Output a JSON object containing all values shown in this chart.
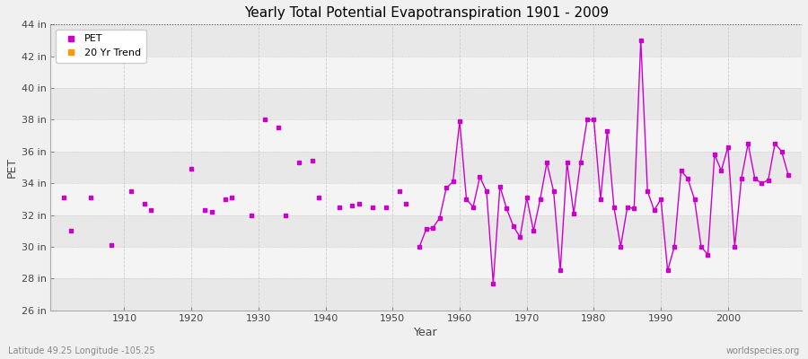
{
  "title": "Yearly Total Potential Evapotranspiration 1901 - 2009",
  "xlabel": "Year",
  "ylabel": "PET",
  "subtitle_left": "Latitude 49.25 Longitude -105.25",
  "subtitle_right": "worldspecies.org",
  "ylim": [
    26,
    44
  ],
  "yticks": [
    26,
    28,
    30,
    32,
    34,
    36,
    38,
    40,
    42,
    44
  ],
  "ytick_labels": [
    "26 in",
    "28 in",
    "30 in",
    "32 in",
    "34 in",
    "36 in",
    "38 in",
    "40 in",
    "42 in",
    "44 in"
  ],
  "xlim": [
    1899,
    2011
  ],
  "xticks": [
    1910,
    1920,
    1930,
    1940,
    1950,
    1960,
    1970,
    1980,
    1990,
    2000
  ],
  "bg_color": "#f0f0f0",
  "plot_bg_color": "#f0f0f0",
  "band_colors": [
    "#e8e8e8",
    "#f4f4f4"
  ],
  "line_color": "#cc00cc",
  "trend_color": "#ff9900",
  "line_connected_start": 1954,
  "pet_data": {
    "1901": 33.1,
    "1902": 31.0,
    "1905": 33.1,
    "1908": 30.1,
    "1911": 33.5,
    "1913": 32.7,
    "1914": 32.3,
    "1920": 34.9,
    "1922": 32.3,
    "1923": 32.2,
    "1925": 33.0,
    "1926": 33.1,
    "1929": 32.0,
    "1931": 38.0,
    "1933": 37.5,
    "1934": 32.0,
    "1936": 35.3,
    "1938": 35.4,
    "1939": 33.1,
    "1942": 32.5,
    "1944": 32.6,
    "1945": 32.7,
    "1947": 32.5,
    "1949": 32.5,
    "1951": 33.5,
    "1952": 32.7,
    "1954": 30.0,
    "1955": 31.1,
    "1956": 31.2,
    "1957": 31.8,
    "1958": 33.7,
    "1959": 34.1,
    "1960": 37.9,
    "1961": 33.0,
    "1962": 32.5,
    "1963": 34.4,
    "1964": 33.5,
    "1965": 27.7,
    "1966": 33.8,
    "1967": 32.4,
    "1968": 31.3,
    "1969": 30.6,
    "1970": 33.1,
    "1971": 31.0,
    "1972": 33.0,
    "1973": 35.3,
    "1974": 33.5,
    "1975": 28.5,
    "1976": 35.3,
    "1977": 32.1,
    "1978": 35.3,
    "1979": 38.0,
    "1980": 38.0,
    "1981": 33.0,
    "1982": 37.3,
    "1983": 32.5,
    "1984": 30.0,
    "1985": 32.5,
    "1986": 32.4,
    "1987": 43.0,
    "1988": 33.5,
    "1989": 32.3,
    "1990": 33.0,
    "1991": 28.5,
    "1992": 30.0,
    "1993": 34.8,
    "1994": 34.3,
    "1995": 33.0,
    "1996": 30.0,
    "1997": 29.5,
    "1998": 35.8,
    "1999": 34.8,
    "2000": 36.3,
    "2001": 30.0,
    "2002": 34.3,
    "2003": 36.5,
    "2004": 34.3,
    "2005": 34.0,
    "2006": 34.2,
    "2007": 36.5,
    "2008": 36.0,
    "2009": 34.5
  },
  "legend_pet_color": "#cc00cc",
  "legend_trend_color": "#ff9900",
  "marker_size": 3,
  "linewidth": 1.0
}
